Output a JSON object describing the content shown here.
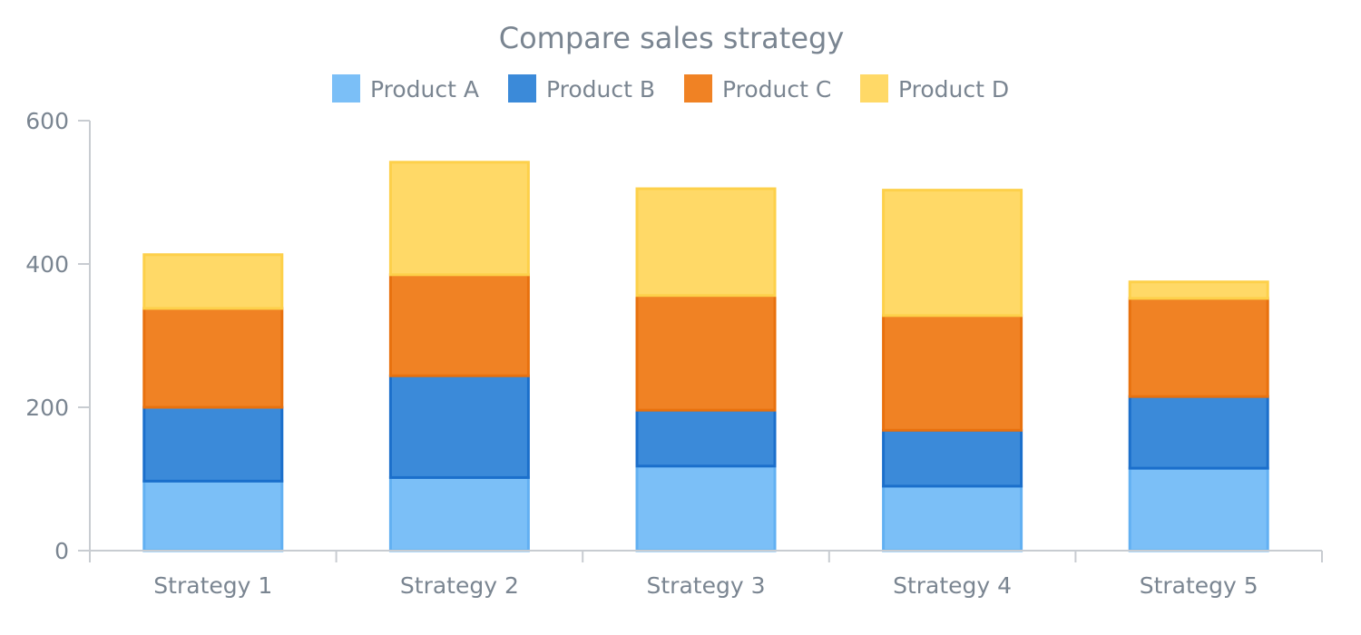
{
  "chart_data": {
    "type": "bar",
    "stacked": true,
    "title": "Compare sales strategy",
    "xlabel": "",
    "ylabel": "",
    "categories": [
      "Strategy 1",
      "Strategy 2",
      "Strategy 3",
      "Strategy 4",
      "Strategy 5"
    ],
    "series": [
      {
        "name": "Product A",
        "color": "#7bbff7",
        "stroke": "#62b0f2",
        "values": [
          97,
          102,
          118,
          90,
          115
        ]
      },
      {
        "name": "Product B",
        "color": "#3b8ad9",
        "stroke": "#1b6fcb",
        "values": [
          103,
          142,
          78,
          78,
          100
        ]
      },
      {
        "name": "Product C",
        "color": "#f08224",
        "stroke": "#e8710e",
        "values": [
          138,
          141,
          160,
          160,
          137
        ]
      },
      {
        "name": "Product D",
        "color": "#ffd967",
        "stroke": "#fdd04a",
        "values": [
          75,
          157,
          149,
          175,
          23
        ]
      }
    ],
    "ylim": [
      0,
      600
    ],
    "yticks": [
      0,
      200,
      400,
      600
    ],
    "grid": false,
    "legend_position": "top-center"
  }
}
